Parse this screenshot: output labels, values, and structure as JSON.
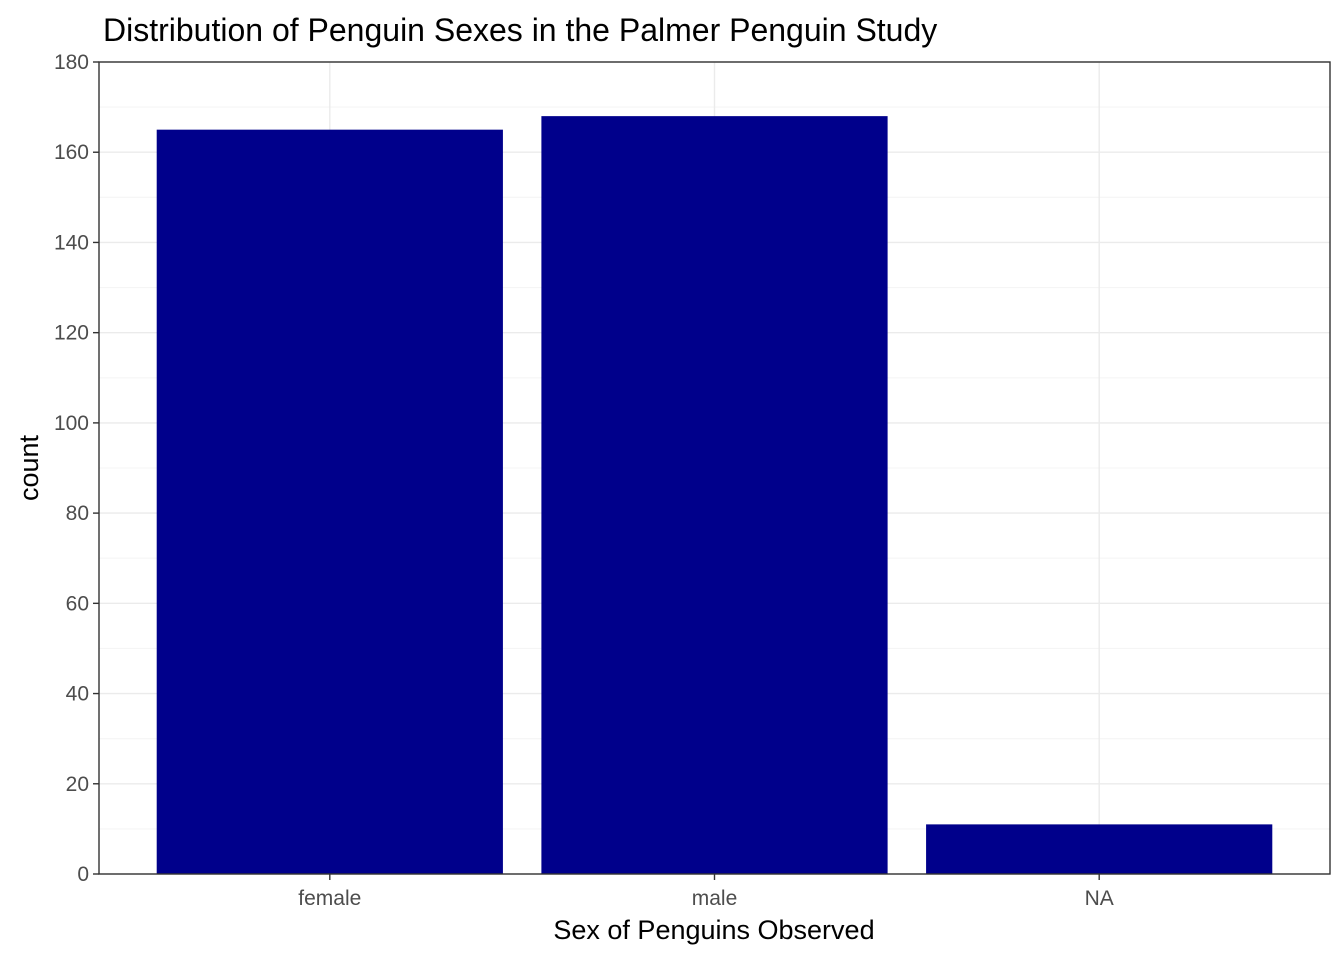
{
  "chart_data": {
    "type": "bar",
    "title": "Distribution of Penguin Sexes in the Palmer Penguin Study",
    "xlabel": "Sex of Penguins Observed",
    "ylabel": "count",
    "categories": [
      "female",
      "male",
      "NA"
    ],
    "values": [
      165,
      168,
      11
    ],
    "ylim": [
      0,
      180
    ],
    "yticks": [
      0,
      20,
      40,
      60,
      80,
      100,
      120,
      140,
      160,
      180
    ],
    "grid": true,
    "legend": "none",
    "colors": {
      "bar": "#00008B",
      "grid_major": "#ebebeb",
      "grid_minor": "#f5f5f5",
      "panel_border": "#333333",
      "tick_label": "#4d4d4d"
    }
  }
}
